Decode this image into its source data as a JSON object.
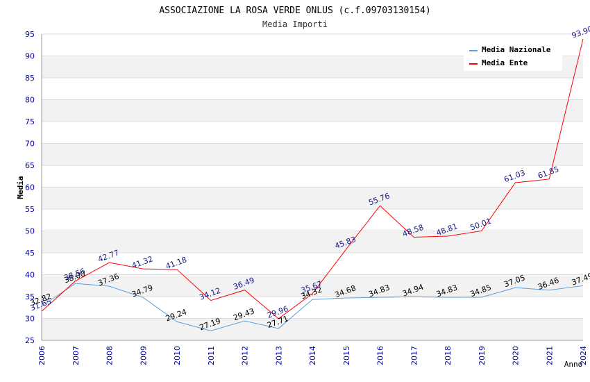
{
  "chart_data": {
    "type": "line",
    "title": "ASSOCIAZIONE LA ROSA VERDE ONLUS (c.f.09703130154)",
    "subtitle": "Media Importi",
    "xlabel": "Anno",
    "ylabel": "Media",
    "ylim": [
      25,
      95
    ],
    "y_ticks": [
      25,
      30,
      35,
      40,
      45,
      50,
      55,
      60,
      65,
      70,
      75,
      80,
      85,
      90,
      95
    ],
    "grid": true,
    "legend_position": "top-right",
    "categories": [
      "2006",
      "2007",
      "2008",
      "2009",
      "2010",
      "2011",
      "2012",
      "2013",
      "2014",
      "2015",
      "2016",
      "2017",
      "2018",
      "2019",
      "2020",
      "2021",
      "2024"
    ],
    "series": [
      {
        "name": "Media Nazionale",
        "color": "#5aa0dc",
        "label_color": "#000000",
        "values": [
          32.82,
          38.0,
          37.36,
          34.79,
          29.24,
          27.19,
          29.43,
          27.71,
          34.32,
          34.68,
          34.83,
          34.94,
          34.83,
          34.85,
          37.05,
          36.46,
          37.49
        ],
        "labels": [
          "32.82",
          "38.00",
          "37.36",
          "34.79",
          "29.24",
          "27.19",
          "29.43",
          "27.71",
          "34.32",
          "34.68",
          "34.83",
          "34.94",
          "34.83",
          "34.85",
          "37.05",
          "36.46",
          "37.49"
        ]
      },
      {
        "name": "Media Ente",
        "color": "#ff0000",
        "label_color": "#1a1a8c",
        "values": [
          31.65,
          38.56,
          42.77,
          41.32,
          41.18,
          34.12,
          36.49,
          29.96,
          35.67,
          45.83,
          55.76,
          48.58,
          48.81,
          50.01,
          61.03,
          61.85,
          93.9
        ],
        "labels": [
          "31.65",
          "38.56",
          "42.77",
          "41.32",
          "41.18",
          "34.12",
          "36.49",
          "29.96",
          "35.67",
          "45.83",
          "55.76",
          "48.58",
          "48.81",
          "50.01",
          "61.03",
          "61.85",
          "93.90"
        ]
      }
    ]
  }
}
